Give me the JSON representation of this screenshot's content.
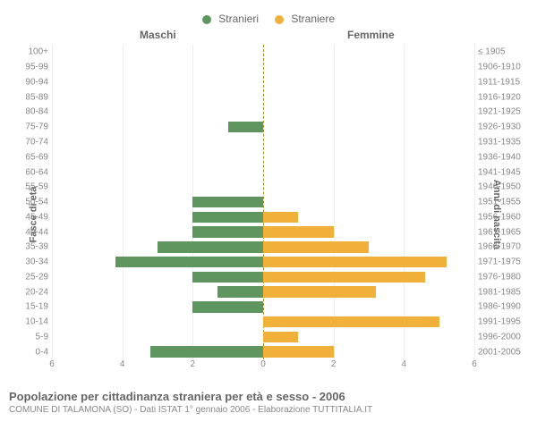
{
  "legend": {
    "male": {
      "label": "Stranieri",
      "color": "#5f955f"
    },
    "female": {
      "label": "Straniere",
      "color": "#f0b03a"
    }
  },
  "header_male": "Maschi",
  "header_female": "Femmine",
  "y_axis_left_title": "Fasce di età",
  "y_axis_right_title": "Anni di nascita",
  "title": "Popolazione per cittadinanza straniera per età e sesso - 2006",
  "subtitle": "COMUNE DI TALAMONA (SO) - Dati ISTAT 1° gennaio 2006 - Elaborazione TUTTITALIA.IT",
  "x": {
    "max": 6,
    "ticks": [
      6,
      4,
      2,
      0,
      2,
      4,
      6
    ]
  },
  "colors": {
    "bar_male": "#5f955f",
    "bar_female": "#f0b03a",
    "center_line": "#9b8f2a",
    "grid": "#eeeeee",
    "text": "#666666",
    "text_light": "#888888",
    "bg": "#ffffff"
  },
  "rows": [
    {
      "age": "100+",
      "birth": "≤ 1905",
      "m": 0,
      "f": 0
    },
    {
      "age": "95-99",
      "birth": "1906-1910",
      "m": 0,
      "f": 0
    },
    {
      "age": "90-94",
      "birth": "1911-1915",
      "m": 0,
      "f": 0
    },
    {
      "age": "85-89",
      "birth": "1916-1920",
      "m": 0,
      "f": 0
    },
    {
      "age": "80-84",
      "birth": "1921-1925",
      "m": 0,
      "f": 0
    },
    {
      "age": "75-79",
      "birth": "1926-1930",
      "m": 1,
      "f": 0
    },
    {
      "age": "70-74",
      "birth": "1931-1935",
      "m": 0,
      "f": 0
    },
    {
      "age": "65-69",
      "birth": "1936-1940",
      "m": 0,
      "f": 0
    },
    {
      "age": "60-64",
      "birth": "1941-1945",
      "m": 0,
      "f": 0
    },
    {
      "age": "55-59",
      "birth": "1946-1950",
      "m": 0,
      "f": 0
    },
    {
      "age": "50-54",
      "birth": "1951-1955",
      "m": 2,
      "f": 0
    },
    {
      "age": "45-49",
      "birth": "1956-1960",
      "m": 2,
      "f": 1
    },
    {
      "age": "40-44",
      "birth": "1961-1965",
      "m": 2,
      "f": 2
    },
    {
      "age": "35-39",
      "birth": "1966-1970",
      "m": 3,
      "f": 3
    },
    {
      "age": "30-34",
      "birth": "1971-1975",
      "m": 4.2,
      "f": 5.2
    },
    {
      "age": "25-29",
      "birth": "1976-1980",
      "m": 2,
      "f": 4.6
    },
    {
      "age": "20-24",
      "birth": "1981-1985",
      "m": 1.3,
      "f": 3.2
    },
    {
      "age": "15-19",
      "birth": "1986-1990",
      "m": 2,
      "f": 0
    },
    {
      "age": "10-14",
      "birth": "1991-1995",
      "m": 0,
      "f": 5
    },
    {
      "age": "5-9",
      "birth": "1996-2000",
      "m": 0,
      "f": 1
    },
    {
      "age": "0-4",
      "birth": "2001-2005",
      "m": 3.2,
      "f": 2
    }
  ]
}
